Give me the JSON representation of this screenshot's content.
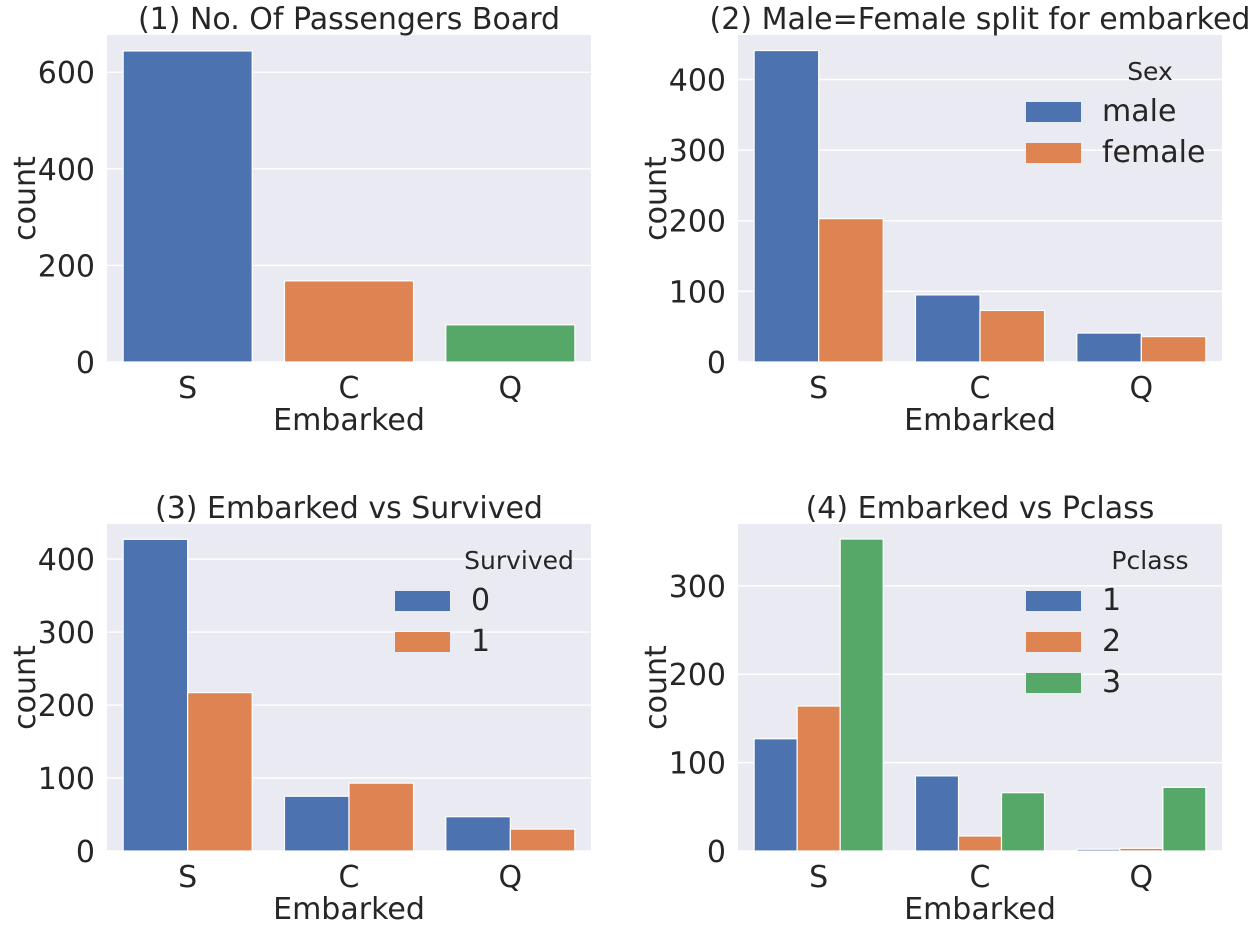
{
  "chart_data": [
    {
      "type": "bar",
      "title": "(1) No. Of Passengers Board",
      "xlabel": "Embarked",
      "ylabel": "count",
      "categories": [
        "S",
        "C",
        "Q"
      ],
      "series": [
        {
          "values": [
            644,
            168,
            77
          ],
          "colors": [
            "#4c72b0",
            "#dd8452",
            "#55a868"
          ]
        }
      ],
      "ylim": [
        0,
        677
      ],
      "yticks": [
        0,
        200,
        400,
        600
      ],
      "grid": true,
      "legend": null
    },
    {
      "type": "bar",
      "title": "(2) Male=Female split for embarked",
      "xlabel": "Embarked",
      "ylabel": "count",
      "categories": [
        "S",
        "C",
        "Q"
      ],
      "series": [
        {
          "name": "male",
          "values": [
            441,
            95,
            41
          ],
          "color": "#4c72b0"
        },
        {
          "name": "female",
          "values": [
            203,
            73,
            36
          ],
          "color": "#dd8452"
        }
      ],
      "ylim": [
        0,
        463
      ],
      "yticks": [
        0,
        100,
        200,
        300,
        400
      ],
      "grid": true,
      "legend": {
        "title": "Sex",
        "placement": "upper right"
      }
    },
    {
      "type": "bar",
      "title": "(3) Embarked vs Survived",
      "xlabel": "Embarked",
      "ylabel": "count",
      "categories": [
        "S",
        "C",
        "Q"
      ],
      "series": [
        {
          "name": "0",
          "values": [
            427,
            75,
            47
          ],
          "color": "#4c72b0"
        },
        {
          "name": "1",
          "values": [
            217,
            93,
            30
          ],
          "color": "#dd8452"
        }
      ],
      "ylim": [
        0,
        448
      ],
      "yticks": [
        0,
        100,
        200,
        300,
        400
      ],
      "grid": true,
      "legend": {
        "title": "Survived",
        "placement": "upper right"
      }
    },
    {
      "type": "bar",
      "title": "(4) Embarked vs Pclass",
      "xlabel": "Embarked",
      "ylabel": "count",
      "categories": [
        "S",
        "C",
        "Q"
      ],
      "series": [
        {
          "name": "1",
          "values": [
            127,
            85,
            2
          ],
          "color": "#4c72b0"
        },
        {
          "name": "2",
          "values": [
            164,
            17,
            3
          ],
          "color": "#dd8452"
        },
        {
          "name": "3",
          "values": [
            353,
            66,
            72
          ],
          "color": "#55a868"
        }
      ],
      "ylim": [
        0,
        370
      ],
      "yticks": [
        0,
        100,
        200,
        300
      ],
      "grid": true,
      "legend": {
        "title": "Pclass",
        "placement": "upper right"
      }
    }
  ]
}
